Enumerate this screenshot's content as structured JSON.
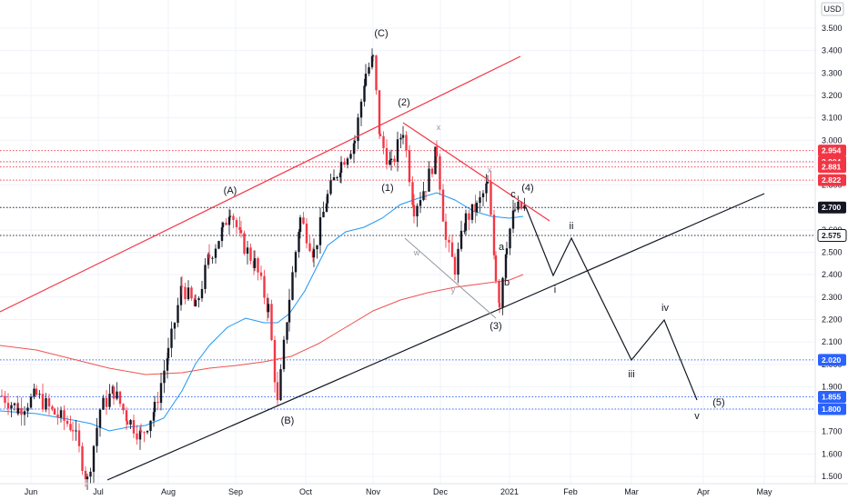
{
  "chart_data": {
    "type": "candlestick",
    "currency": "USD",
    "price_ticks": [
      "3.500",
      "3.400",
      "3.300",
      "3.200",
      "3.100",
      "3.000",
      "2.900",
      "2.800",
      "2.700",
      "2.600",
      "2.500",
      "2.400",
      "2.300",
      "2.200",
      "2.100",
      "2.000",
      "1.900",
      "1.800",
      "1.700",
      "1.600",
      "1.500"
    ],
    "time_ticks": [
      "Jun",
      "Jul",
      "Aug",
      "Sep",
      "Oct",
      "Nov",
      "Dec",
      "2021",
      "Feb",
      "Mar",
      "Apr",
      "May"
    ],
    "y_range": [
      1.46,
      3.6
    ],
    "grid": true,
    "price_levels": [
      {
        "label": "2.954",
        "value": 2.954,
        "color": "#f23645",
        "style": "dotted"
      },
      {
        "label": "2.904",
        "value": 2.904,
        "color": "#f23645",
        "style": "dotted"
      },
      {
        "label": "2.881",
        "value": 2.881,
        "color": "#f23645",
        "style": "dotted"
      },
      {
        "label": "2.822",
        "value": 2.822,
        "color": "#f23645",
        "style": "dotted"
      },
      {
        "label": "2.700",
        "value": 2.7,
        "color": "#131722",
        "style": "dotted"
      },
      {
        "label": "2.575",
        "value": 2.575,
        "color": "#131722",
        "style": "dotted"
      },
      {
        "label": "2.020",
        "value": 2.02,
        "color": "#2962ff",
        "style": "dotted"
      },
      {
        "label": "1.855",
        "value": 1.855,
        "color": "#2962ff",
        "style": "dotted"
      },
      {
        "label": "1.800",
        "value": 1.8,
        "color": "#2962ff",
        "style": "dotted"
      }
    ],
    "wave_labels": [
      "(A)",
      "(B)",
      "(C)",
      "(1)",
      "(2)",
      "(3)",
      "(4)",
      "(5)",
      "a",
      "b",
      "c",
      "w",
      "x",
      "y",
      "x",
      "i",
      "ii",
      "iii",
      "iv",
      "v"
    ],
    "colors": {
      "up": "#26a69a",
      "down": "#ef5350",
      "candle": "#131722",
      "candle_red": "#f23645",
      "ma_short": "#2196f3",
      "ma_long": "#ef5350",
      "channel": "#f23645",
      "trendline": "#131722",
      "badge_red": "#f23645",
      "badge_blue": "#2962ff",
      "badge_dark": "#131722"
    }
  }
}
